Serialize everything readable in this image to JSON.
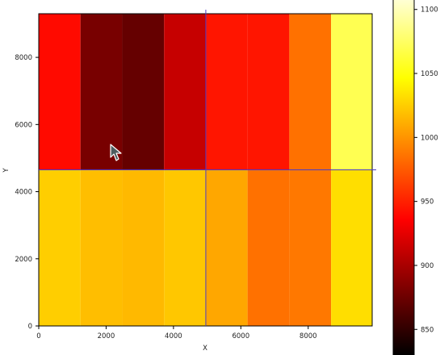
{
  "chart_data": {
    "type": "heatmap",
    "title": "",
    "xlabel": "X",
    "ylabel": "Y",
    "xlim": [
      0,
      9900
    ],
    "ylim": [
      0,
      9300
    ],
    "x_ticks": [
      "0",
      "2000",
      "4000",
      "6000",
      "8000"
    ],
    "y_ticks": [
      "0",
      "2000",
      "4000",
      "6000",
      "8000"
    ],
    "column_edges": [
      0,
      1240,
      2480,
      3720,
      4960,
      6200,
      7440,
      8680,
      9900
    ],
    "row_edges": [
      0,
      4650,
      9300
    ],
    "values": [
      [
        1025,
        1018,
        1016,
        1022,
        1008,
        985,
        988,
        1032
      ],
      [
        940,
        880,
        872,
        912,
        945,
        945,
        985,
        1070
      ]
    ],
    "colorbar": {
      "colormap": "hot",
      "vmin": 830,
      "vmax": 1120,
      "ticks": [
        "850",
        "900",
        "950",
        "1000",
        "1050",
        "1100"
      ]
    },
    "crosshair": {
      "x": 4960,
      "y": 4650
    }
  }
}
